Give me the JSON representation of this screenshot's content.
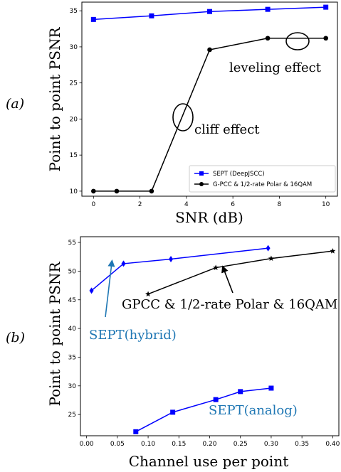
{
  "chart_data": [
    {
      "panel_label": "(𝑎)",
      "type": "line",
      "xlabel": "SNR (dB)",
      "ylabel": "Point to point PSNR",
      "xlim": [
        -0.5,
        10.5
      ],
      "ylim": [
        9.3,
        36.2
      ],
      "xticks": [
        0,
        2,
        4,
        6,
        8,
        10
      ],
      "yticks": [
        10,
        15,
        20,
        25,
        30,
        35
      ],
      "grid": false,
      "legend_position": "lower-right",
      "series": [
        {
          "name": "SEPT (DeepJSCC)",
          "color": "#0000ff",
          "marker": "square",
          "x": [
            0,
            2.5,
            5,
            7.5,
            10
          ],
          "y": [
            33.8,
            34.3,
            34.9,
            35.2,
            35.5
          ]
        },
        {
          "name": "G-PCC & 1/2-rate Polar & 16QAM",
          "color": "#000000",
          "marker": "circle",
          "x": [
            0,
            1,
            2.5,
            5,
            7.5,
            10
          ],
          "y": [
            10.0,
            10.0,
            10.0,
            29.6,
            31.2,
            31.2
          ]
        }
      ],
      "annotations": [
        {
          "text": "cliff effect",
          "color": "#000000",
          "at_x": 3.8,
          "at_y": 21.0
        },
        {
          "text": "leveling effect",
          "color": "#000000",
          "at_x": 8.8,
          "at_y": 31.2
        }
      ]
    },
    {
      "panel_label": "(𝑏)",
      "type": "line",
      "xlabel": "Channel use per point",
      "ylabel": "Point to point PSNR",
      "xlim": [
        -0.01,
        0.41
      ],
      "ylim": [
        21.3,
        56.0
      ],
      "xticks": [
        "0.00",
        "0.05",
        "0.10",
        "0.15",
        "0.20",
        "0.25",
        "0.30",
        "0.35",
        "0.40"
      ],
      "yticks": [
        25,
        30,
        35,
        40,
        45,
        50,
        55
      ],
      "grid": false,
      "series": [
        {
          "color": "#0000ff",
          "marker": "diamond",
          "x": [
            0.008,
            0.06,
            0.137,
            0.295
          ],
          "y": [
            46.6,
            51.3,
            52.1,
            54.0
          ]
        },
        {
          "color": "#000000",
          "marker": "star",
          "x": [
            0.1,
            0.21,
            0.3,
            0.4
          ],
          "y": [
            46.0,
            50.6,
            52.2,
            53.5
          ]
        },
        {
          "color": "#0000ff",
          "marker": "square",
          "x": [
            0.08,
            0.14,
            0.21,
            0.25,
            0.3
          ],
          "y": [
            22.0,
            25.4,
            27.6,
            29.0,
            29.6
          ]
        }
      ],
      "annotations": [
        {
          "text": "SEPT(hybrid)",
          "color": "#1f77b4"
        },
        {
          "text": "GPCC & 1/2-rate Polar & 16QAM",
          "color": "#000000"
        },
        {
          "text": "SEPT(analog)",
          "color": "#1f77b4"
        }
      ]
    }
  ]
}
